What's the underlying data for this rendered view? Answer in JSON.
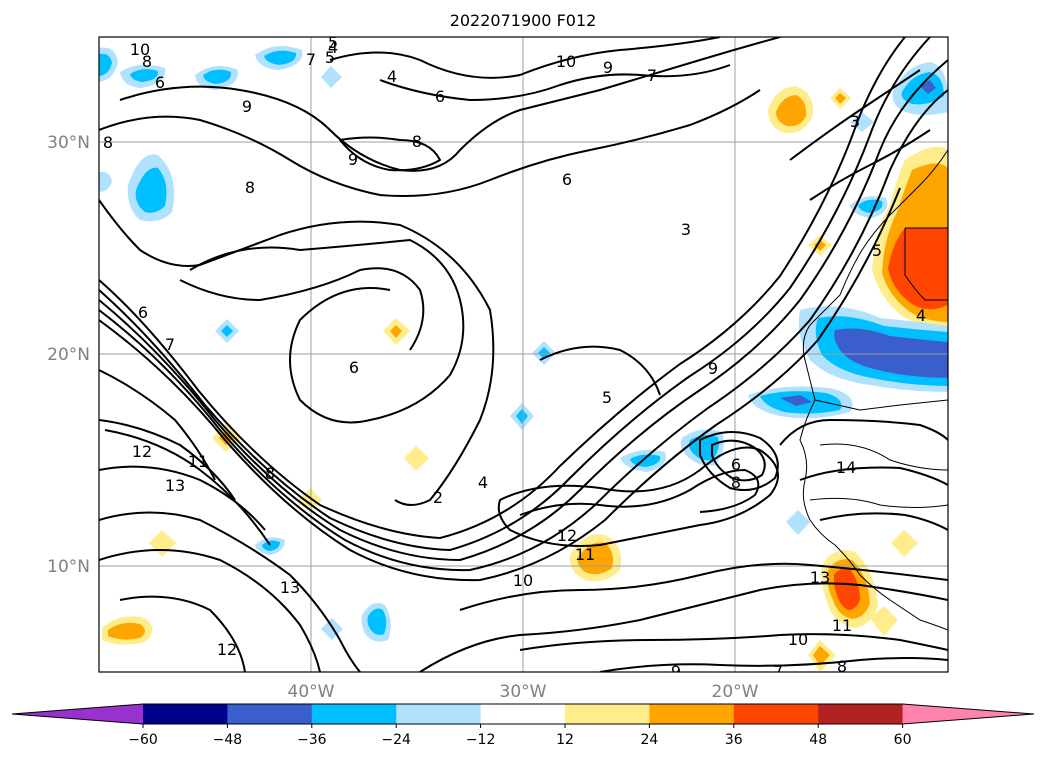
{
  "title": "2022071900 F012",
  "map": {
    "lat_labels": [
      "30°N",
      "20°N",
      "10°N"
    ],
    "lon_labels": [
      "40°W",
      "30°W",
      "20°W"
    ]
  },
  "colorbar": {
    "ticks": [
      "−60",
      "−48",
      "−36",
      "−24",
      "−12",
      "12",
      "24",
      "36",
      "48",
      "60"
    ],
    "colors": [
      "#9932cc",
      "#00008b",
      "#3a5fcd",
      "#00bfff",
      "#b0e2ff",
      "#ffffff",
      "#ffec8b",
      "#ffa500",
      "#ff4500",
      "#b22222",
      "#ff83aa"
    ]
  },
  "contour_labels": [
    "10",
    "8",
    "5",
    "4",
    "7",
    "5",
    "6",
    "10",
    "9",
    "7",
    "4",
    "6",
    "8",
    "9",
    "9",
    "8",
    "6",
    "3",
    "5",
    "4",
    "3",
    "8",
    "6",
    "7",
    "6",
    "9",
    "5",
    "12",
    "11",
    "13",
    "8",
    "2",
    "4",
    "6",
    "8",
    "14",
    "12",
    "11",
    "10",
    "13",
    "12",
    "13",
    "10",
    "11",
    "8",
    "9",
    "7"
  ],
  "shading": [
    {
      "level": "−36",
      "color": "#00bfff"
    },
    {
      "level": "−24",
      "color": "#b0e2ff"
    },
    {
      "level": "24",
      "color": "#ffa500"
    },
    {
      "level": "12",
      "color": "#ffec8b"
    },
    {
      "level": "36",
      "color": "#ff4500"
    },
    {
      "level": "−48",
      "color": "#3a5fcd"
    }
  ]
}
